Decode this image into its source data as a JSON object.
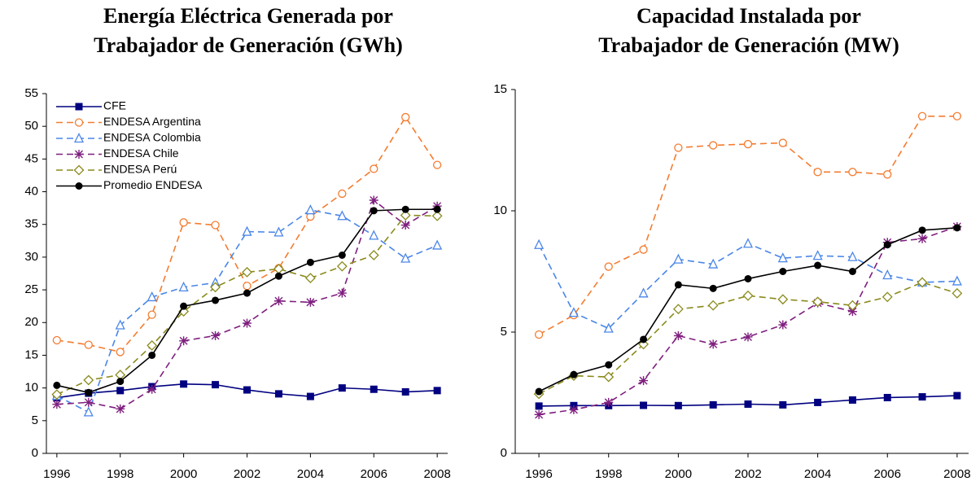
{
  "chart_data": [
    {
      "type": "line",
      "title": [
        "Energía Eléctrica Generada por",
        "Trabajador de Generación (GWh)"
      ],
      "x": [
        1996,
        1997,
        1998,
        1999,
        2000,
        2001,
        2002,
        2003,
        2004,
        2005,
        2006,
        2007,
        2008
      ],
      "xlim": [
        1995.67,
        2008.33
      ],
      "xticks": [
        1996,
        1998,
        2000,
        2002,
        2004,
        2006,
        2008
      ],
      "ylim": [
        0,
        55
      ],
      "yticks": [
        0,
        5,
        10,
        15,
        20,
        25,
        30,
        35,
        40,
        45,
        50,
        55
      ],
      "legend": "upper left",
      "series": [
        {
          "name": "CFE",
          "color": "#000080",
          "dash": false,
          "marker": "square",
          "values": [
            8.5,
            9.2,
            9.6,
            10.2,
            10.6,
            10.5,
            9.7,
            9.1,
            8.7,
            10.0,
            9.8,
            9.4,
            9.6
          ]
        },
        {
          "name": "ENDESA Argentina",
          "color": "#f47c30",
          "dash": true,
          "marker": "circle-open",
          "values": [
            17.3,
            16.6,
            15.5,
            21.2,
            35.3,
            34.9,
            25.6,
            28.3,
            36.2,
            39.7,
            43.5,
            51.4,
            44.1
          ]
        },
        {
          "name": "ENDESA Colombia",
          "color": "#4a86e8",
          "dash": true,
          "marker": "triangle",
          "values": [
            8.8,
            6.3,
            19.6,
            23.9,
            25.4,
            26.1,
            33.9,
            33.8,
            37.2,
            36.3,
            33.3,
            29.8,
            31.8
          ]
        },
        {
          "name": "ENDESA Chile",
          "color": "#7f1f7f",
          "dash": true,
          "marker": "star",
          "values": [
            7.5,
            7.8,
            6.8,
            9.8,
            17.2,
            18.0,
            19.9,
            23.3,
            23.1,
            24.5,
            38.7,
            34.9,
            37.8
          ]
        },
        {
          "name": "ENDESA Perú",
          "color": "#8a8a1c",
          "dash": true,
          "marker": "diamond",
          "values": [
            9.0,
            11.2,
            12.0,
            16.5,
            21.7,
            25.4,
            27.7,
            28.2,
            26.8,
            28.6,
            30.3,
            36.4,
            36.3
          ]
        },
        {
          "name": "Promedio ENDESA",
          "color": "#000000",
          "dash": false,
          "marker": "circle",
          "values": [
            10.4,
            9.3,
            11.0,
            15.0,
            22.5,
            23.4,
            24.5,
            27.1,
            29.2,
            30.3,
            37.1,
            37.3,
            37.3
          ]
        }
      ]
    },
    {
      "type": "line",
      "title": [
        "Capacidad Instalada por",
        "Trabajador de Generación (MW)"
      ],
      "x": [
        1996,
        1997,
        1998,
        1999,
        2000,
        2001,
        2002,
        2003,
        2004,
        2005,
        2006,
        2007,
        2008
      ],
      "xlim": [
        1995.32,
        2008.33
      ],
      "xticks": [
        1996,
        1998,
        2000,
        2002,
        2004,
        2006,
        2008
      ],
      "ylim": [
        0,
        15
      ],
      "yticks": [
        0,
        5,
        10,
        15
      ],
      "series": [
        {
          "color": "#000080",
          "dash": false,
          "marker": "square",
          "values": [
            1.95,
            1.97,
            1.97,
            1.98,
            1.97,
            2.0,
            2.03,
            2.0,
            2.1,
            2.2,
            2.3,
            2.33,
            2.38
          ]
        },
        {
          "color": "#f47c30",
          "dash": true,
          "marker": "circle-open",
          "values": [
            4.9,
            5.7,
            7.7,
            8.4,
            12.6,
            12.7,
            12.75,
            12.8,
            11.6,
            11.6,
            11.5,
            13.9,
            13.9
          ]
        },
        {
          "color": "#4a86e8",
          "dash": true,
          "marker": "triangle",
          "values": [
            8.6,
            5.8,
            5.15,
            6.6,
            8.0,
            7.8,
            8.65,
            8.05,
            8.15,
            8.1,
            7.35,
            7.05,
            7.1
          ]
        },
        {
          "color": "#7f1f7f",
          "dash": true,
          "marker": "star",
          "values": [
            1.6,
            1.8,
            2.1,
            3.0,
            4.85,
            4.5,
            4.8,
            5.3,
            6.2,
            5.85,
            8.7,
            8.85,
            9.35
          ]
        },
        {
          "color": "#8a8a1c",
          "dash": true,
          "marker": "diamond",
          "values": [
            2.45,
            3.2,
            3.15,
            4.5,
            5.95,
            6.1,
            6.5,
            6.35,
            6.25,
            6.1,
            6.45,
            7.05,
            6.6
          ]
        },
        {
          "color": "#000000",
          "dash": false,
          "marker": "circle",
          "values": [
            2.55,
            3.25,
            3.65,
            4.7,
            6.95,
            6.8,
            7.2,
            7.5,
            7.75,
            7.5,
            8.6,
            9.2,
            9.3
          ]
        }
      ]
    }
  ]
}
